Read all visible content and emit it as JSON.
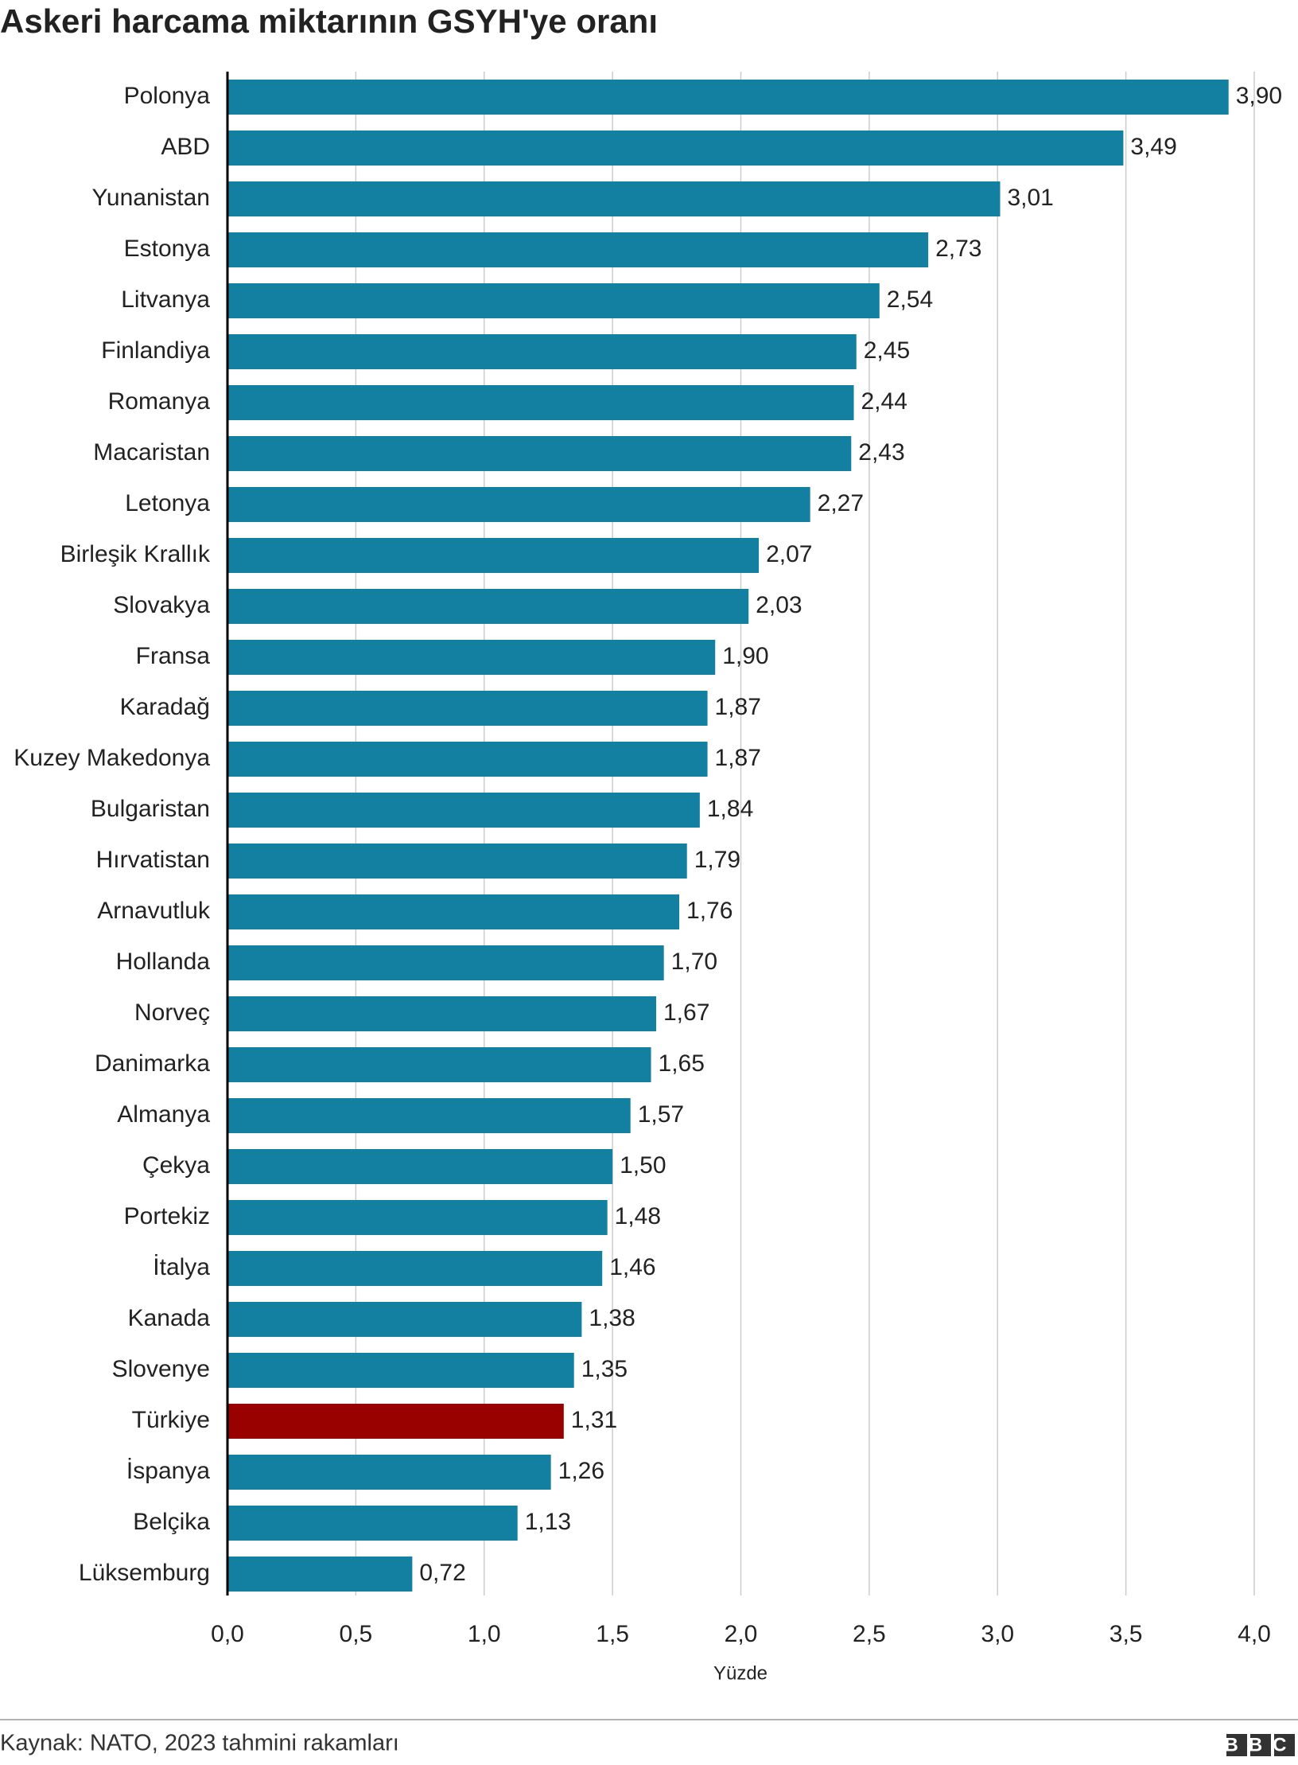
{
  "chart_data": {
    "type": "bar",
    "orientation": "horizontal",
    "title": "Askeri harcama miktarının GSYH'ye oranı",
    "x_label": "Yüzde",
    "source": "Kaynak: NATO, 2023 tahmini rakamları",
    "logo": "BBC",
    "categories": [
      "Polonya",
      "ABD",
      "Yunanistan",
      "Estonya",
      "Litvanya",
      "Finlandiya",
      "Romanya",
      "Macaristan",
      "Letonya",
      "Birleşik Krallık",
      "Slovakya",
      "Fransa",
      "Karadağ",
      "Kuzey Makedonya",
      "Bulgaristan",
      "Hırvatistan",
      "Arnavutluk",
      "Hollanda",
      "Norveç",
      "Danimarka",
      "Almanya",
      "Çekya",
      "Portekiz",
      "İtalya",
      "Kanada",
      "Slovenye",
      "Türkiye",
      "İspanya",
      "Belçika",
      "Lüksemburg"
    ],
    "values": [
      3.9,
      3.49,
      3.01,
      2.73,
      2.54,
      2.45,
      2.44,
      2.43,
      2.27,
      2.07,
      2.03,
      1.9,
      1.87,
      1.87,
      1.84,
      1.79,
      1.76,
      1.7,
      1.67,
      1.65,
      1.57,
      1.5,
      1.48,
      1.46,
      1.38,
      1.35,
      1.31,
      1.26,
      1.13,
      0.72
    ],
    "value_labels": [
      "3,90",
      "3,49",
      "3,01",
      "2,73",
      "2,54",
      "2,45",
      "2,44",
      "2,43",
      "2,27",
      "2,07",
      "2,03",
      "1,90",
      "1,87",
      "1,87",
      "1,84",
      "1,79",
      "1,76",
      "1,70",
      "1,67",
      "1,65",
      "1,57",
      "1,50",
      "1,48",
      "1,46",
      "1,38",
      "1,35",
      "1,31",
      "1,26",
      "1,13",
      "0,72"
    ],
    "colors": [
      "#1380a1",
      "#1380a1",
      "#1380a1",
      "#1380a1",
      "#1380a1",
      "#1380a1",
      "#1380a1",
      "#1380a1",
      "#1380a1",
      "#1380a1",
      "#1380a1",
      "#1380a1",
      "#1380a1",
      "#1380a1",
      "#1380a1",
      "#1380a1",
      "#1380a1",
      "#1380a1",
      "#1380a1",
      "#1380a1",
      "#1380a1",
      "#1380a1",
      "#1380a1",
      "#1380a1",
      "#1380a1",
      "#1380a1",
      "#990000",
      "#1380a1",
      "#1380a1",
      "#1380a1"
    ],
    "xlim": [
      0,
      4
    ],
    "xticks": [
      {
        "value": 0,
        "label": "0,0"
      },
      {
        "value": 0.5,
        "label": "0,5"
      },
      {
        "value": 1,
        "label": "1,0"
      },
      {
        "value": 1.5,
        "label": "1,5"
      },
      {
        "value": 2,
        "label": "2,0"
      },
      {
        "value": 2.5,
        "label": "2,5"
      },
      {
        "value": 3,
        "label": "3,0"
      },
      {
        "value": 3.5,
        "label": "3,5"
      },
      {
        "value": 4,
        "label": "4,0"
      }
    ],
    "grid": true
  }
}
